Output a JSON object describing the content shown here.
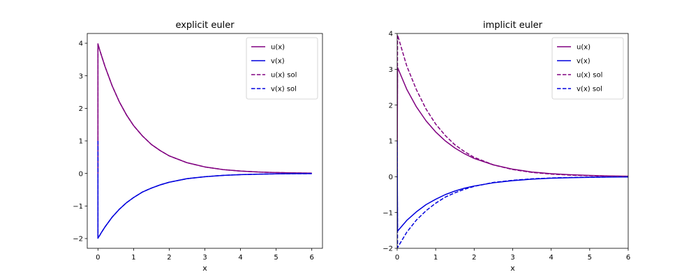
{
  "chart_data": [
    {
      "type": "line",
      "title": "explicit euler",
      "xlabel": "x",
      "ylabel": "",
      "xlim": [
        -0.3,
        6.3
      ],
      "ylim": [
        -2.3,
        4.3
      ],
      "xticks": [
        0,
        1,
        2,
        3,
        4,
        5,
        6
      ],
      "xtick_labels": [
        "0",
        "1",
        "2",
        "3",
        "4",
        "5",
        "6"
      ],
      "yticks": [
        -2,
        -1,
        0,
        1,
        2,
        3,
        4
      ],
      "ytick_labels": [
        "−2",
        "−1",
        "0",
        "1",
        "2",
        "3",
        "4"
      ],
      "legend": "top-right",
      "grid": false,
      "series": [
        {
          "name": "u(x)",
          "color": "#800080",
          "dash": "solid",
          "x": [
            0,
            0.0001,
            0.05,
            0.1,
            0.2,
            0.4,
            0.6,
            0.8,
            1.0,
            1.25,
            1.5,
            1.75,
            2.0,
            2.5,
            3.0,
            3.5,
            4.0,
            4.5,
            5.0,
            5.5,
            6.0
          ],
          "y": [
            0,
            3.98,
            3.79,
            3.62,
            3.28,
            2.69,
            2.2,
            1.8,
            1.47,
            1.15,
            0.89,
            0.7,
            0.54,
            0.33,
            0.2,
            0.12,
            0.073,
            0.044,
            0.027,
            0.016,
            0.01
          ]
        },
        {
          "name": "v(x)",
          "color": "#0000dd",
          "dash": "solid",
          "x": [
            0,
            0.0001,
            0.05,
            0.1,
            0.2,
            0.4,
            0.6,
            0.8,
            1.0,
            1.25,
            1.5,
            1.75,
            2.0,
            2.5,
            3.0,
            3.5,
            4.0,
            4.5,
            5.0,
            5.5,
            6.0
          ],
          "y": [
            1.0,
            -1.99,
            -1.9,
            -1.81,
            -1.64,
            -1.34,
            -1.1,
            -0.9,
            -0.74,
            -0.57,
            -0.45,
            -0.35,
            -0.27,
            -0.16,
            -0.1,
            -0.06,
            -0.036,
            -0.022,
            -0.013,
            -0.008,
            -0.005
          ]
        },
        {
          "name": "u(x) sol",
          "color": "#800080",
          "dash": "dashed",
          "x": [
            0,
            0.0001,
            0.05,
            0.1,
            0.2,
            0.4,
            0.6,
            0.8,
            1.0,
            1.25,
            1.5,
            1.75,
            2.0,
            2.5,
            3.0,
            3.5,
            4.0,
            4.5,
            5.0,
            5.5,
            6.0
          ],
          "y": [
            0,
            3.98,
            3.79,
            3.62,
            3.28,
            2.69,
            2.2,
            1.8,
            1.47,
            1.15,
            0.89,
            0.7,
            0.54,
            0.33,
            0.2,
            0.12,
            0.073,
            0.044,
            0.027,
            0.016,
            0.01
          ]
        },
        {
          "name": "v(x) sol",
          "color": "#0000dd",
          "dash": "dashed",
          "x": [
            0,
            0.0001,
            0.05,
            0.1,
            0.2,
            0.4,
            0.6,
            0.8,
            1.0,
            1.25,
            1.5,
            1.75,
            2.0,
            2.5,
            3.0,
            3.5,
            4.0,
            4.5,
            5.0,
            5.5,
            6.0
          ],
          "y": [
            1.0,
            -1.99,
            -1.9,
            -1.81,
            -1.64,
            -1.34,
            -1.1,
            -0.9,
            -0.74,
            -0.57,
            -0.45,
            -0.35,
            -0.27,
            -0.16,
            -0.1,
            -0.06,
            -0.036,
            -0.022,
            -0.013,
            -0.008,
            -0.005
          ]
        }
      ]
    },
    {
      "type": "line",
      "title": "implicit euler",
      "xlabel": "x",
      "ylabel": "",
      "xlim": [
        0,
        6
      ],
      "ylim": [
        -2,
        4
      ],
      "xticks": [
        0,
        1,
        2,
        3,
        4,
        5,
        6
      ],
      "xtick_labels": [
        "0",
        "1",
        "2",
        "3",
        "4",
        "5",
        "6"
      ],
      "yticks": [
        -2,
        -1,
        0,
        1,
        2,
        3,
        4
      ],
      "ytick_labels": [
        "−2",
        "−1",
        "0",
        "1",
        "2",
        "3",
        "4"
      ],
      "legend": "top-right",
      "grid": false,
      "series": [
        {
          "name": "u(x)",
          "color": "#800080",
          "dash": "solid",
          "x": [
            0,
            0.01,
            0.25,
            0.5,
            0.75,
            1.0,
            1.25,
            1.5,
            1.75,
            2.0,
            2.5,
            3.0,
            3.5,
            4.0,
            4.5,
            5.0,
            5.5,
            6.0
          ],
          "y": [
            0,
            3.05,
            2.44,
            1.95,
            1.56,
            1.25,
            1.0,
            0.8,
            0.64,
            0.51,
            0.33,
            0.21,
            0.13,
            0.085,
            0.054,
            0.035,
            0.022,
            0.014
          ]
        },
        {
          "name": "v(x)",
          "color": "#0000dd",
          "dash": "solid",
          "x": [
            0,
            0.01,
            0.25,
            0.5,
            0.75,
            1.0,
            1.25,
            1.5,
            1.75,
            2.0,
            2.5,
            3.0,
            3.5,
            4.0,
            4.5,
            5.0,
            5.5,
            6.0
          ],
          "y": [
            1.0,
            -1.52,
            -1.22,
            -0.98,
            -0.78,
            -0.63,
            -0.5,
            -0.4,
            -0.32,
            -0.26,
            -0.17,
            -0.11,
            -0.07,
            -0.043,
            -0.027,
            -0.017,
            -0.011,
            -0.007
          ]
        },
        {
          "name": "u(x) sol",
          "color": "#800080",
          "dash": "dashed",
          "x": [
            0,
            0.01,
            0.25,
            0.5,
            0.75,
            1.0,
            1.25,
            1.5,
            1.75,
            2.0,
            2.5,
            3.0,
            3.5,
            4.0,
            4.5,
            5.0,
            5.5,
            6.0
          ],
          "y": [
            0,
            3.96,
            3.09,
            2.43,
            1.89,
            1.47,
            1.15,
            0.89,
            0.7,
            0.54,
            0.33,
            0.2,
            0.12,
            0.073,
            0.044,
            0.027,
            0.016,
            0.01
          ]
        },
        {
          "name": "v(x) sol",
          "color": "#0000dd",
          "dash": "dashed",
          "x": [
            0,
            0.01,
            0.25,
            0.5,
            0.75,
            1.0,
            1.25,
            1.5,
            1.75,
            2.0,
            2.5,
            3.0,
            3.5,
            4.0,
            4.5,
            5.0,
            5.5,
            6.0
          ],
          "y": [
            1.0,
            -1.98,
            -1.55,
            -1.21,
            -0.95,
            -0.74,
            -0.57,
            -0.45,
            -0.35,
            -0.27,
            -0.16,
            -0.1,
            -0.06,
            -0.036,
            -0.022,
            -0.013,
            -0.008,
            -0.005
          ]
        }
      ]
    }
  ]
}
